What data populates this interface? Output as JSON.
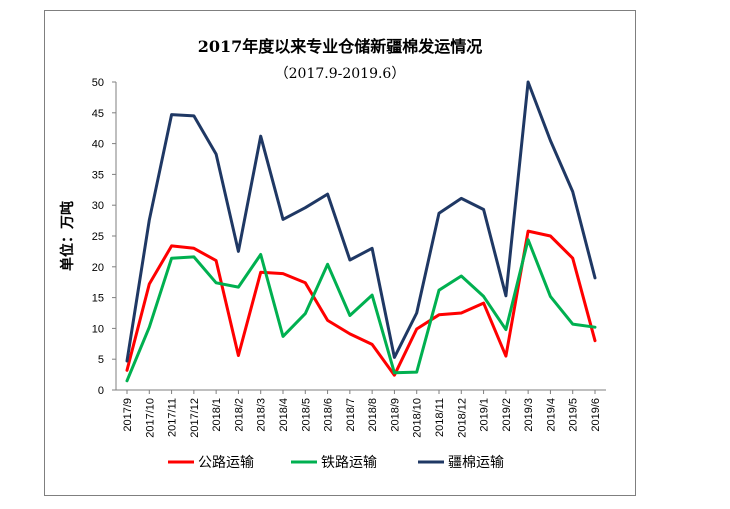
{
  "chart_data": {
    "type": "line",
    "title": "2017年度以来专业仓储新疆棉发运情况",
    "subtitle": "（2017.9-2019.6）",
    "ylabel": "单位：万吨",
    "xlabel": "",
    "ylim": [
      0,
      50
    ],
    "yticks": [
      0,
      5,
      10,
      15,
      20,
      25,
      30,
      35,
      40,
      45,
      50
    ],
    "grid": false,
    "legend_position": "bottom",
    "categories": [
      "2017/9",
      "2017/10",
      "2017/11",
      "2017/12",
      "2018/1",
      "2018/2",
      "2018/3",
      "2018/4",
      "2018/5",
      "2018/6",
      "2018/7",
      "2018/8",
      "2018/9",
      "2018/10",
      "2018/11",
      "2018/12",
      "2019/1",
      "2019/2",
      "2019/3",
      "2019/4",
      "2019/5",
      "2019/6"
    ],
    "series": [
      {
        "name": "公路运输",
        "color": "#ff0000",
        "values": [
          3.2,
          17.2,
          23.4,
          23.0,
          21.0,
          5.6,
          19.1,
          18.9,
          17.4,
          11.3,
          9.1,
          7.4,
          2.4,
          9.9,
          12.2,
          12.5,
          14.1,
          5.5,
          25.8,
          25.0,
          21.4,
          8.0
        ]
      },
      {
        "name": "铁路运输",
        "color": "#00b050",
        "values": [
          1.5,
          10.2,
          21.4,
          21.6,
          17.4,
          16.7,
          22.0,
          8.7,
          12.4,
          20.4,
          12.1,
          15.4,
          2.8,
          2.9,
          16.2,
          18.5,
          15.2,
          9.8,
          24.4,
          15.2,
          10.7,
          10.2
        ]
      },
      {
        "name": "疆棉运输",
        "color": "#1f3864",
        "values": [
          4.7,
          27.6,
          44.7,
          44.5,
          38.3,
          22.5,
          41.2,
          27.7,
          29.6,
          31.8,
          21.1,
          23.0,
          5.3,
          12.5,
          28.7,
          31.1,
          29.3,
          15.3,
          50.0,
          40.5,
          32.2,
          18.2
        ]
      }
    ]
  }
}
